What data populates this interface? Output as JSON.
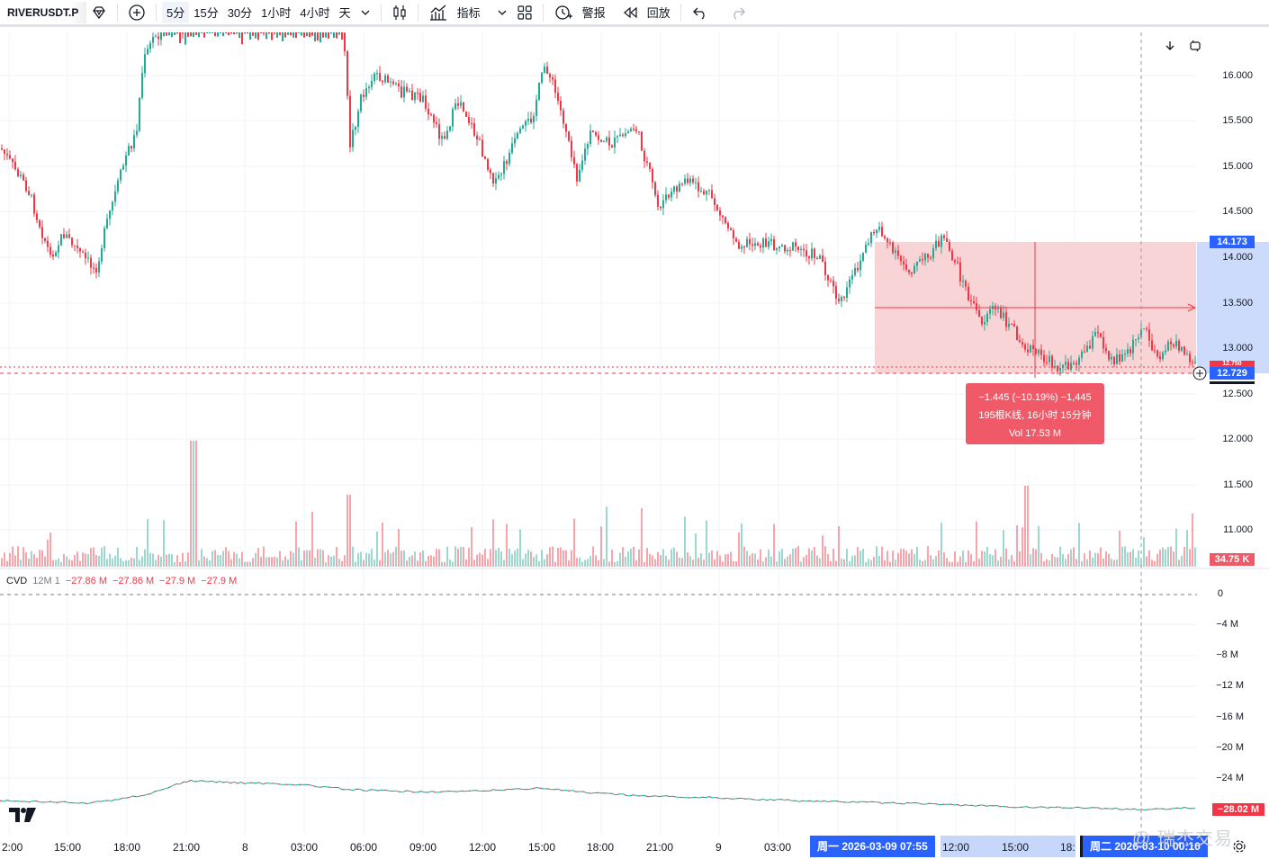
{
  "toolbar": {
    "symbol": "RIVERUSDT.P",
    "intervals": [
      "5分",
      "15分",
      "30分",
      "1小时",
      "4小时",
      "天"
    ],
    "active_interval": "5分",
    "indicators_label": "指标",
    "alerts_label": "警报",
    "replay_label": "回放"
  },
  "price_axis": {
    "labels": [
      "16.000",
      "15.500",
      "15.000",
      "14.500",
      "14.000",
      "13.500",
      "13.000",
      "12.500",
      "12.000",
      "11.500",
      "11.000"
    ],
    "upper_tag": "14.173",
    "current_tag": "12.729",
    "hidden_tag": "12.750",
    "volume_tag": "34.75 K"
  },
  "cvd": {
    "name": "CVD",
    "params": "12M 1",
    "values": [
      "−27.86 M",
      "−27.86 M",
      "−27.9 M",
      "−27.9 M"
    ],
    "axis_labels": [
      "0",
      "−4 M",
      "−8 M",
      "−12 M",
      "−16 M",
      "−20 M",
      "−24 M"
    ],
    "current_tag": "−28.02 M"
  },
  "measure": {
    "line1": "−1.445 (−10.19%) −1,445",
    "line2": "195根K线, 16小时 15分钟",
    "line3": "Vol 17.53 M"
  },
  "time_axis": {
    "labels": [
      "2:00",
      "15:00",
      "18:00",
      "21:00",
      "8",
      "03:00",
      "06:00",
      "09:00",
      "12:00",
      "15:00",
      "18:00",
      "21:00",
      "9",
      "03:00",
      "12:00",
      "15:00",
      "18:"
    ],
    "start_chip": "周一 2026-03-09  07:55",
    "end_chip": "周二 2026-03-10  00:10"
  },
  "watermark": "@ 瑞杰交易",
  "colors": {
    "up": "#22ab94",
    "down": "#f23645",
    "accent": "#2962ff",
    "measure_fill": "#f7c9cc"
  }
}
